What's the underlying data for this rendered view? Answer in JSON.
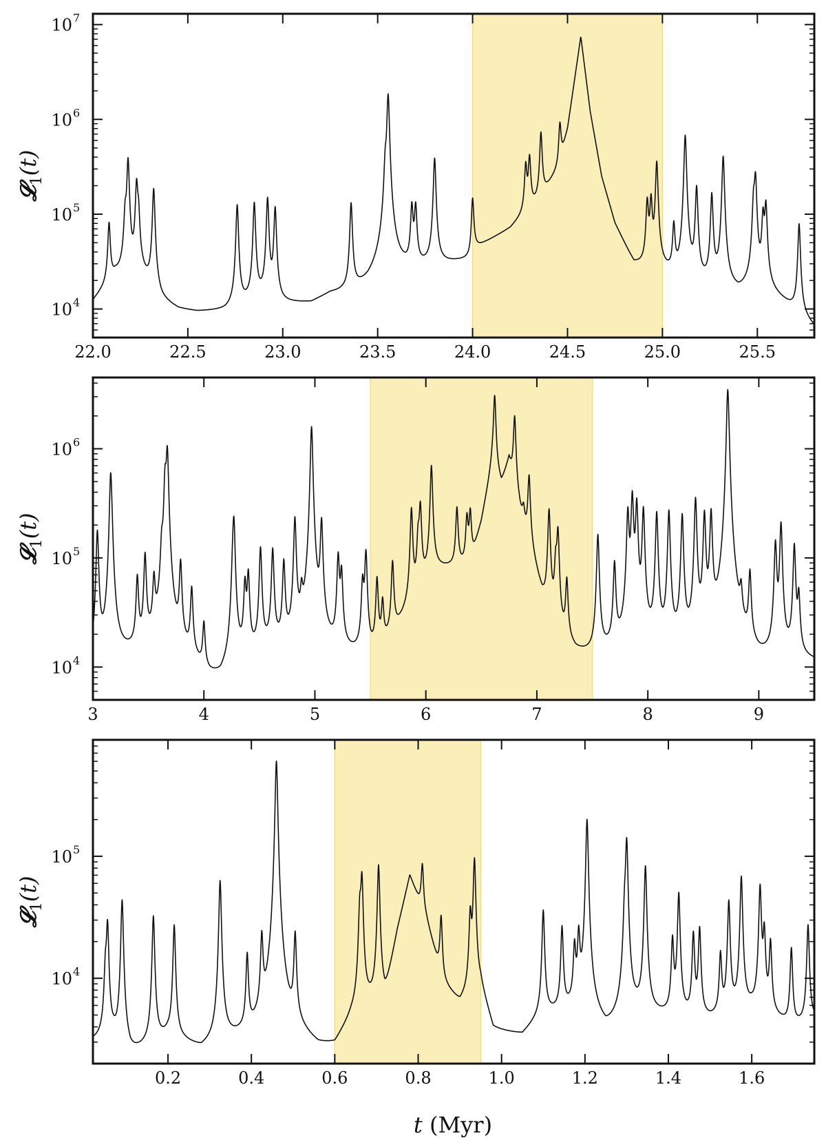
{
  "figure": {
    "xlabel": "t (Myr)",
    "xlabel_parts": {
      "var": "t",
      "unit": " (Myr)"
    }
  },
  "colors": {
    "line": "#111111",
    "highlight": "#fbefb9",
    "highlight_edge": "#f2dc86",
    "frame": "#111111"
  },
  "chart_data": [
    {
      "type": "line",
      "yscale": "log",
      "ylabel": "𝓛1(t)",
      "ylabel_parts": {
        "main": "𝓛",
        "sub": "1",
        "arg": "(t)"
      },
      "xlim": [
        22.0,
        25.8
      ],
      "ylim": [
        5000,
        13000000
      ],
      "xticks": [
        22.0,
        22.5,
        23.0,
        23.5,
        24.0,
        24.5,
        25.0,
        25.5
      ],
      "xticklabels": [
        "22.0",
        "22.5",
        "23.0",
        "23.5",
        "24.0",
        "24.5",
        "25.0",
        "25.5"
      ],
      "yticks": [
        {
          "base": "10",
          "exp": "4",
          "value": 10000
        },
        {
          "base": "10",
          "exp": "5",
          "value": 100000
        },
        {
          "base": "10",
          "exp": "6",
          "value": 1000000
        },
        {
          "base": "10",
          "exp": "7",
          "value": 10000000
        }
      ],
      "highlight": [
        24.0,
        25.0
      ],
      "grid": false,
      "baseline": [
        [
          22.0,
          11500
        ],
        [
          22.05,
          15000
        ],
        [
          22.12,
          22000
        ],
        [
          22.2,
          20000
        ],
        [
          22.26,
          21000
        ],
        [
          22.31,
          16000
        ],
        [
          22.36,
          11500
        ],
        [
          22.45,
          9500
        ],
        [
          22.55,
          9000
        ],
        [
          22.7,
          9300
        ],
        [
          22.8,
          11000
        ],
        [
          22.9,
          12500
        ],
        [
          23.0,
          11000
        ],
        [
          23.15,
          11200
        ],
        [
          23.25,
          14000
        ],
        [
          23.35,
          14500
        ],
        [
          23.45,
          17500
        ],
        [
          23.55,
          27000
        ],
        [
          23.65,
          26000
        ],
        [
          23.75,
          28000
        ],
        [
          23.85,
          30000
        ],
        [
          23.99,
          33000
        ],
        [
          24.0,
          42000
        ],
        [
          24.2,
          70000
        ],
        [
          24.35,
          140000
        ],
        [
          24.45,
          300000
        ],
        [
          24.5,
          800000
        ],
        [
          24.57,
          7500000
        ],
        [
          24.62,
          1200000
        ],
        [
          24.68,
          250000
        ],
        [
          24.75,
          80000
        ],
        [
          24.85,
          30000
        ],
        [
          24.92,
          26000
        ],
        [
          25.0,
          25000
        ],
        [
          25.1,
          18000
        ],
        [
          25.2,
          17000
        ],
        [
          25.3,
          16500
        ],
        [
          25.4,
          14000
        ],
        [
          25.5,
          18000
        ],
        [
          25.6,
          13000
        ],
        [
          25.7,
          9500
        ],
        [
          25.8,
          6000
        ]
      ],
      "peaks": [
        [
          22.085,
          62000
        ],
        [
          22.17,
          70000
        ],
        [
          22.185,
          360000
        ],
        [
          22.23,
          190000
        ],
        [
          22.24,
          75000
        ],
        [
          22.32,
          170000
        ],
        [
          22.76,
          115000
        ],
        [
          22.85,
          120000
        ],
        [
          22.92,
          135000
        ],
        [
          22.96,
          105000
        ],
        [
          23.36,
          115000
        ],
        [
          23.54,
          240000
        ],
        [
          23.555,
          1800000
        ],
        [
          23.68,
          95000
        ],
        [
          23.7,
          95000
        ],
        [
          23.8,
          360000
        ],
        [
          24.0,
          105000
        ],
        [
          24.28,
          230000
        ],
        [
          24.3,
          290000
        ],
        [
          24.36,
          580000
        ],
        [
          24.46,
          570000
        ],
        [
          24.92,
          110000
        ],
        [
          24.94,
          115000
        ],
        [
          24.97,
          330000
        ],
        [
          25.06,
          55000
        ],
        [
          25.12,
          660000
        ],
        [
          25.18,
          175000
        ],
        [
          25.26,
          145000
        ],
        [
          25.32,
          390000
        ],
        [
          25.48,
          110000
        ],
        [
          25.49,
          230000
        ],
        [
          25.53,
          80000
        ],
        [
          25.545,
          110000
        ],
        [
          25.72,
          70000
        ]
      ]
    },
    {
      "type": "line",
      "yscale": "log",
      "ylabel": "𝓛1(t)",
      "ylabel_parts": {
        "main": "𝓛",
        "sub": "1",
        "arg": "(t)"
      },
      "xlim": [
        3.0,
        9.5
      ],
      "ylim": [
        5000,
        4500000
      ],
      "xticks": [
        3,
        4,
        5,
        6,
        7,
        8,
        9
      ],
      "xticklabels": [
        "3",
        "4",
        "5",
        "6",
        "7",
        "8",
        "9"
      ],
      "yticks": [
        {
          "base": "10",
          "exp": "4",
          "value": 10000
        },
        {
          "base": "10",
          "exp": "5",
          "value": 100000
        },
        {
          "base": "10",
          "exp": "6",
          "value": 1000000
        }
      ],
      "highlight": [
        5.5,
        7.5
      ],
      "grid": false,
      "baseline": [
        [
          3.0,
          9500
        ],
        [
          3.3,
          12000
        ],
        [
          3.6,
          14000
        ],
        [
          3.9,
          10000
        ],
        [
          4.05,
          7000
        ],
        [
          4.15,
          6500
        ],
        [
          4.3,
          10000
        ],
        [
          4.6,
          14000
        ],
        [
          4.9,
          13000
        ],
        [
          5.2,
          12000
        ],
        [
          5.5,
          11500
        ],
        [
          5.6,
          13500
        ],
        [
          5.75,
          22000
        ],
        [
          5.9,
          38000
        ],
        [
          6.05,
          78000
        ],
        [
          6.2,
          80000
        ],
        [
          6.4,
          82000
        ],
        [
          6.5,
          200000
        ],
        [
          6.6,
          700000
        ],
        [
          6.68,
          460000
        ],
        [
          6.75,
          800000
        ],
        [
          6.85,
          250000
        ],
        [
          6.95,
          110000
        ],
        [
          7.05,
          40000
        ],
        [
          7.2,
          16000
        ],
        [
          7.35,
          11500
        ],
        [
          7.5,
          11000
        ],
        [
          7.7,
          12500
        ],
        [
          8.0,
          13000
        ],
        [
          8.3,
          12000
        ],
        [
          8.6,
          11000
        ],
        [
          9.0,
          9000
        ],
        [
          9.2,
          11000
        ],
        [
          9.5,
          10500
        ]
      ],
      "peaks": [
        [
          3.04,
          165000
        ],
        [
          3.16,
          560000
        ],
        [
          3.17,
          60000
        ],
        [
          3.4,
          52000
        ],
        [
          3.47,
          92000
        ],
        [
          3.55,
          45000
        ],
        [
          3.62,
          85000
        ],
        [
          3.65,
          490000
        ],
        [
          3.67,
          950000
        ],
        [
          3.79,
          75000
        ],
        [
          3.89,
          40000
        ],
        [
          4.0,
          15500
        ],
        [
          4.26,
          48000
        ],
        [
          4.27,
          205000
        ],
        [
          4.37,
          46000
        ],
        [
          4.4,
          59000
        ],
        [
          4.51,
          110000
        ],
        [
          4.62,
          105000
        ],
        [
          4.72,
          77000
        ],
        [
          4.82,
          215000
        ],
        [
          4.88,
          24000
        ],
        [
          4.97,
          1580000
        ],
        [
          5.06,
          200000
        ],
        [
          5.21,
          90000
        ],
        [
          5.24,
          60000
        ],
        [
          5.43,
          46000
        ],
        [
          5.46,
          100000
        ],
        [
          5.56,
          50000
        ],
        [
          5.61,
          24000
        ],
        [
          5.7,
          72000
        ],
        [
          5.87,
          245000
        ],
        [
          5.93,
          100000
        ],
        [
          5.95,
          250000
        ],
        [
          6.05,
          620000
        ],
        [
          6.28,
          205000
        ],
        [
          6.37,
          150000
        ],
        [
          6.4,
          180000
        ],
        [
          6.62,
          2450000
        ],
        [
          6.8,
          1550000
        ],
        [
          6.88,
          80000
        ],
        [
          6.93,
          430000
        ],
        [
          7.11,
          245000
        ],
        [
          7.17,
          64000
        ],
        [
          7.19,
          155000
        ],
        [
          7.27,
          46000
        ],
        [
          7.55,
          150000
        ],
        [
          7.7,
          75000
        ],
        [
          7.82,
          250000
        ],
        [
          7.86,
          360000
        ],
        [
          7.9,
          305000
        ],
        [
          7.96,
          265000
        ],
        [
          8.08,
          245000
        ],
        [
          8.19,
          255000
        ],
        [
          8.31,
          234000
        ],
        [
          8.43,
          335000
        ],
        [
          8.51,
          240000
        ],
        [
          8.57,
          245000
        ],
        [
          8.72,
          3350000
        ],
        [
          8.73,
          250000
        ],
        [
          8.84,
          25000
        ],
        [
          8.92,
          58000
        ],
        [
          9.15,
          125000
        ],
        [
          9.2,
          195000
        ],
        [
          9.32,
          120000
        ],
        [
          9.36,
          33000
        ]
      ]
    },
    {
      "type": "line",
      "yscale": "log",
      "ylabel": "𝓛1(t)",
      "ylabel_parts": {
        "main": "𝓛",
        "sub": "1",
        "arg": "(t)"
      },
      "xlim": [
        0.02,
        1.75
      ],
      "ylim": [
        2000,
        900000
      ],
      "xticks": [
        0.2,
        0.4,
        0.6,
        0.8,
        1.0,
        1.2,
        1.4,
        1.6
      ],
      "xticklabels": [
        "0.2",
        "0.4",
        "0.6",
        "0.8",
        "1.0",
        "1.2",
        "1.4",
        "1.6"
      ],
      "yticks": [
        {
          "base": "10",
          "exp": "4",
          "value": 10000
        },
        {
          "base": "10",
          "exp": "5",
          "value": 100000
        }
      ],
      "highlight": [
        0.6,
        0.95
      ],
      "grid": false,
      "baseline": [
        [
          0.02,
          3000
        ],
        [
          0.07,
          3200
        ],
        [
          0.11,
          2300
        ],
        [
          0.16,
          2800
        ],
        [
          0.2,
          3400
        ],
        [
          0.28,
          2500
        ],
        [
          0.33,
          3000
        ],
        [
          0.45,
          3300
        ],
        [
          0.52,
          3000
        ],
        [
          0.56,
          2500
        ],
        [
          0.6,
          2600
        ],
        [
          0.64,
          4500
        ],
        [
          0.68,
          6000
        ],
        [
          0.72,
          7000
        ],
        [
          0.75,
          25000
        ],
        [
          0.78,
          70000
        ],
        [
          0.82,
          30000
        ],
        [
          0.86,
          9000
        ],
        [
          0.9,
          6000
        ],
        [
          0.95,
          8000
        ],
        [
          0.98,
          3600
        ],
        [
          1.05,
          3300
        ],
        [
          1.1,
          5000
        ],
        [
          1.2,
          5500
        ],
        [
          1.25,
          3500
        ],
        [
          1.32,
          5000
        ],
        [
          1.4,
          4800
        ],
        [
          1.5,
          4500
        ],
        [
          1.6,
          5500
        ],
        [
          1.7,
          4000
        ],
        [
          1.75,
          4500
        ]
      ],
      "peaks": [
        [
          0.05,
          8000
        ],
        [
          0.055,
          25000
        ],
        [
          0.09,
          41000
        ],
        [
          0.165,
          29500
        ],
        [
          0.215,
          24000
        ],
        [
          0.325,
          60000
        ],
        [
          0.39,
          12000
        ],
        [
          0.425,
          17500
        ],
        [
          0.46,
          600000
        ],
        [
          0.505,
          19000
        ],
        [
          0.66,
          30000
        ],
        [
          0.665,
          62000
        ],
        [
          0.705,
          78000
        ],
        [
          0.81,
          50000
        ],
        [
          0.855,
          22000
        ],
        [
          0.925,
          26000
        ],
        [
          0.935,
          88000
        ],
        [
          1.1,
          31000
        ],
        [
          1.145,
          21000
        ],
        [
          1.175,
          12500
        ],
        [
          1.185,
          17000
        ],
        [
          1.205,
          195000
        ],
        [
          1.295,
          23500
        ],
        [
          1.3,
          132000
        ],
        [
          1.345,
          78000
        ],
        [
          1.41,
          16000
        ],
        [
          1.425,
          45000
        ],
        [
          1.46,
          18500
        ],
        [
          1.475,
          21000
        ],
        [
          1.525,
          11000
        ],
        [
          1.545,
          38000
        ],
        [
          1.575,
          63000
        ],
        [
          1.62,
          52000
        ],
        [
          1.63,
          19500
        ],
        [
          1.645,
          15000
        ],
        [
          1.695,
          13500
        ],
        [
          1.735,
          23000
        ]
      ]
    }
  ]
}
